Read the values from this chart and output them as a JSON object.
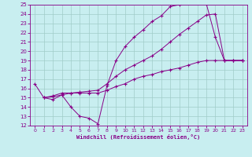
{
  "title": "",
  "xlabel": "Windchill (Refroidissement éolien,°C)",
  "ylabel": "",
  "xlim": [
    -0.5,
    23.5
  ],
  "ylim": [
    12,
    25
  ],
  "xticks": [
    0,
    1,
    2,
    3,
    4,
    5,
    6,
    7,
    8,
    9,
    10,
    11,
    12,
    13,
    14,
    15,
    16,
    17,
    18,
    19,
    20,
    21,
    22,
    23
  ],
  "yticks": [
    12,
    13,
    14,
    15,
    16,
    17,
    18,
    19,
    20,
    21,
    22,
    23,
    24,
    25
  ],
  "background_color": "#c8eef0",
  "grid_color": "#a0ccc8",
  "line_color": "#880088",
  "lines": [
    {
      "x": [
        0,
        1,
        2,
        3,
        4,
        5,
        6,
        7,
        8,
        9,
        10,
        11,
        12,
        13,
        14,
        15,
        16,
        17,
        18,
        19,
        20,
        21,
        22,
        23
      ],
      "y": [
        16.5,
        15.0,
        14.8,
        15.3,
        14.0,
        13.0,
        12.8,
        12.2,
        16.3,
        19.0,
        20.5,
        21.5,
        22.3,
        23.2,
        23.8,
        24.8,
        25.0,
        25.2,
        25.2,
        25.1,
        21.5,
        19.0,
        19.0,
        19.0
      ]
    },
    {
      "x": [
        1,
        2,
        3,
        4,
        5,
        6,
        7,
        8,
        9,
        10,
        11,
        12,
        13,
        14,
        15,
        16,
        17,
        18,
        19,
        20,
        21,
        22,
        23
      ],
      "y": [
        15.0,
        15.2,
        15.5,
        15.5,
        15.6,
        15.7,
        15.8,
        16.5,
        17.3,
        18.0,
        18.5,
        19.0,
        19.5,
        20.2,
        21.0,
        21.8,
        22.5,
        23.2,
        23.9,
        24.0,
        19.0,
        19.0,
        19.0
      ]
    },
    {
      "x": [
        1,
        2,
        3,
        4,
        5,
        6,
        7,
        8,
        9,
        10,
        11,
        12,
        13,
        14,
        15,
        16,
        17,
        18,
        19,
        20,
        21,
        22,
        23
      ],
      "y": [
        15.0,
        15.1,
        15.3,
        15.5,
        15.5,
        15.5,
        15.5,
        15.8,
        16.2,
        16.5,
        17.0,
        17.3,
        17.5,
        17.8,
        18.0,
        18.2,
        18.5,
        18.8,
        19.0,
        19.0,
        19.0,
        19.0,
        19.0
      ]
    }
  ]
}
